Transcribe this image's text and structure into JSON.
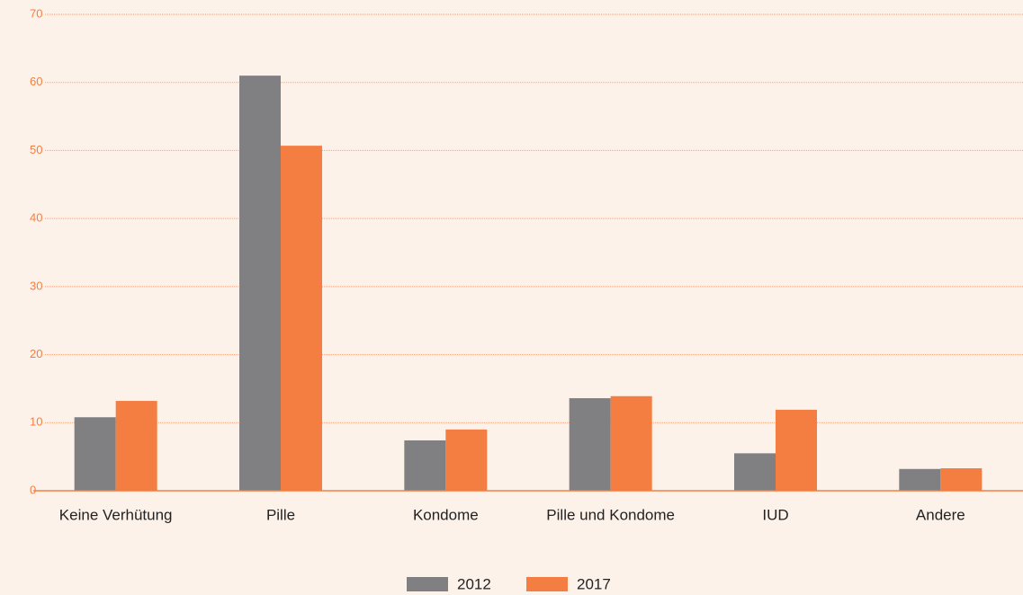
{
  "chart_data": {
    "type": "bar",
    "categories": [
      "Keine Verhütung",
      "Pille",
      "Kondome",
      "Pille und Kondome",
      "IUD",
      "Andere"
    ],
    "series": [
      {
        "name": "2012",
        "color": "#808083",
        "values": [
          10.8,
          61.0,
          7.4,
          13.6,
          5.5,
          3.2
        ]
      },
      {
        "name": "2017",
        "color": "#f47e42",
        "values": [
          13.2,
          50.7,
          9.0,
          13.9,
          11.9,
          3.3
        ]
      }
    ],
    "ylim": [
      0,
      70
    ],
    "yticks": [
      0,
      10,
      20,
      30,
      40,
      50,
      60,
      70
    ],
    "grid": true,
    "legend": "bottom"
  }
}
